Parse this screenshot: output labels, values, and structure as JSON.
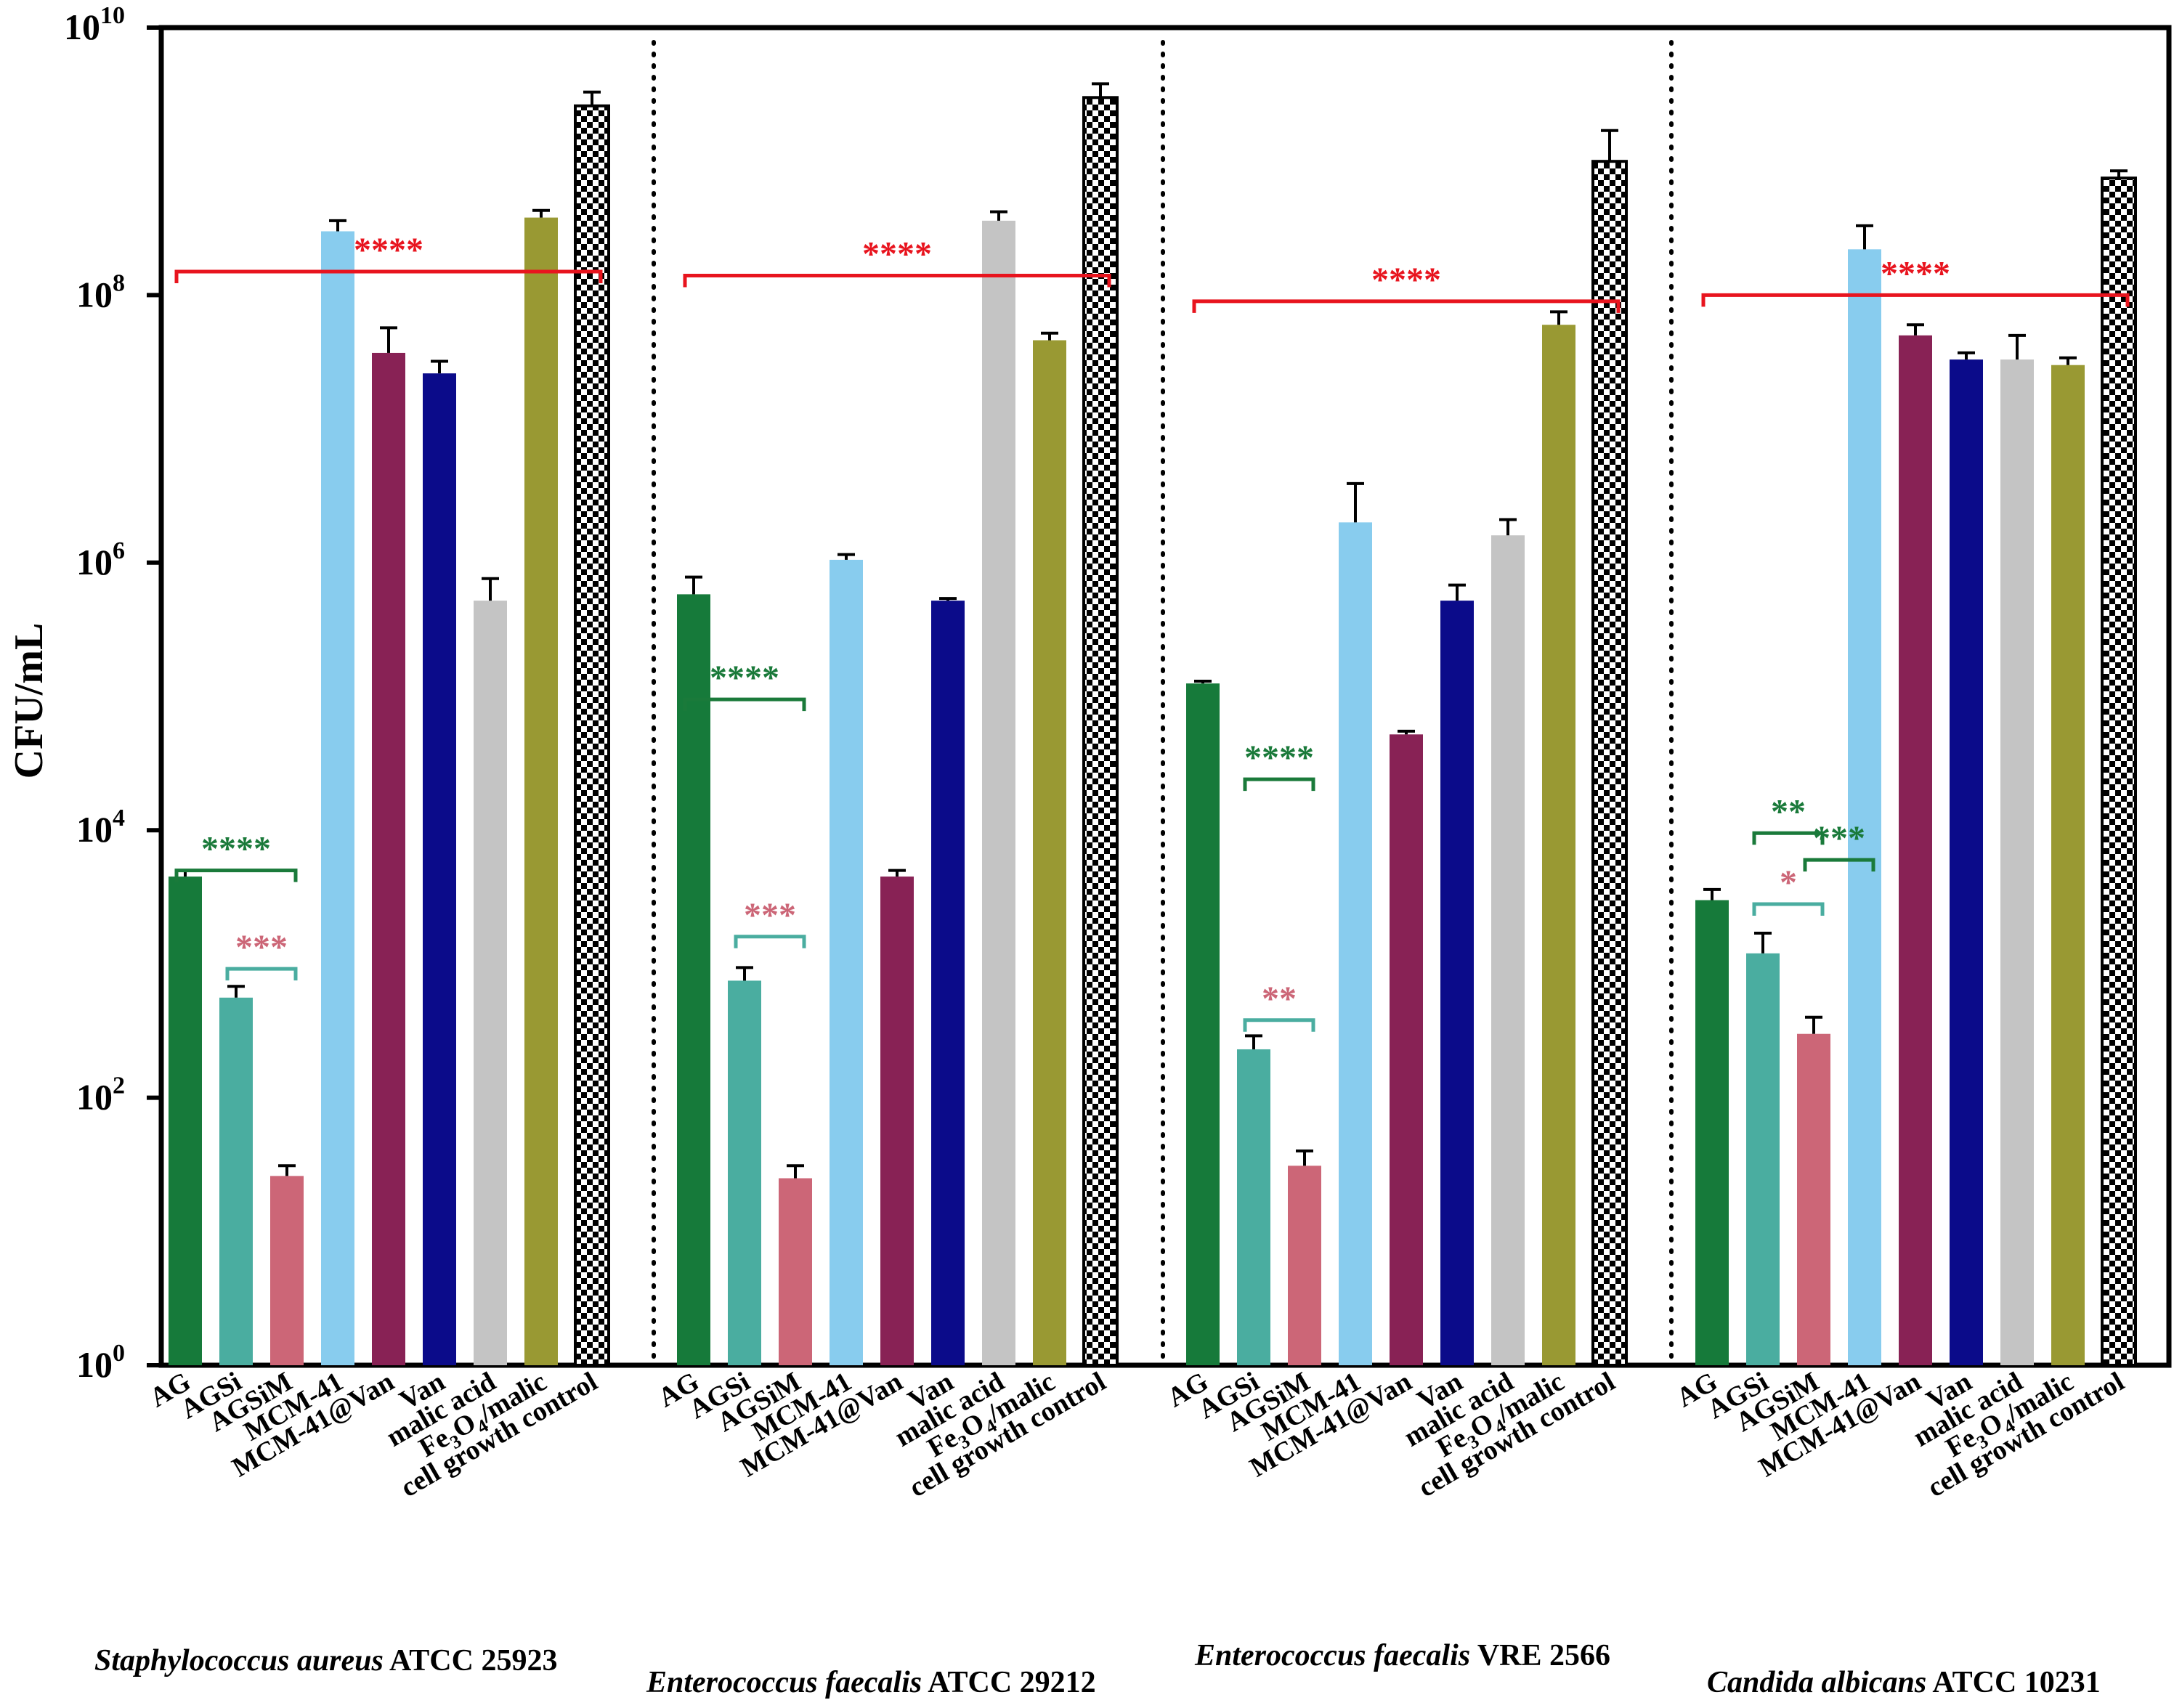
{
  "chart_data": {
    "type": "bar",
    "scale": "log10",
    "ylabel": "CFU/mL",
    "ylim": [
      1,
      10000000000
    ],
    "y_ticks": [
      {
        "value": 1,
        "base": "10",
        "exp": "0"
      },
      {
        "value": 100,
        "base": "10",
        "exp": "2"
      },
      {
        "value": 10000,
        "base": "10",
        "exp": "4"
      },
      {
        "value": 1000000,
        "base": "10",
        "exp": "6"
      },
      {
        "value": 100000000,
        "base": "10",
        "exp": "8"
      },
      {
        "value": 10000000000,
        "base": "10",
        "exp": "10"
      }
    ],
    "categories": [
      {
        "label": "AG"
      },
      {
        "label": "AGSi"
      },
      {
        "label": "AGSiM"
      },
      {
        "label": "MCM-41"
      },
      {
        "label": "MCM-41@Van"
      },
      {
        "label": "Van"
      },
      {
        "label": "malic acid"
      },
      {
        "label_parts": [
          "Fe",
          "3",
          "O",
          "4",
          "/malic"
        ]
      },
      {
        "label": "cell growth control"
      }
    ],
    "bar_colors": [
      "#167a3a",
      "#4aada0",
      "#cc6677",
      "#88ccee",
      "#882255",
      "#0b0b8a",
      "#c4c4c4",
      "#999933",
      "checker"
    ],
    "groups": [
      {
        "name_italic": "Staphylococcus aureus",
        "name_rest": " ATCC 25923",
        "values": [
          4500,
          560,
          26,
          300000000,
          37000000,
          26000000,
          520000,
          380000000,
          2600000000
        ],
        "errors": [
          5000,
          680,
          31,
          360000000,
          57000000,
          32000000,
          760000,
          430000000,
          3300000000
        ],
        "annotations": [
          {
            "from": 0,
            "to": 8,
            "value": 150000000,
            "text": "****",
            "color": "#e8141e"
          },
          {
            "from": 0,
            "to": 2,
            "value": 5000,
            "text": "****",
            "color": "#1a7a3a"
          },
          {
            "from": 1,
            "to": 2,
            "value": 920,
            "text": "***",
            "color": "#cc6677",
            "bracket_color": "#4aada0"
          }
        ]
      },
      {
        "name_italic": "Enterococcus faecalis",
        "name_rest": " ATCC 29212",
        "values": [
          580000,
          750,
          25,
          1050000,
          4500,
          520000,
          360000000,
          46000000,
          3000000000
        ],
        "errors": [
          780000,
          940,
          31,
          1150000,
          5000,
          540000,
          420000000,
          52000000,
          3800000000
        ],
        "annotations": [
          {
            "from": 0,
            "to": 8,
            "value": 140000000,
            "text": "****",
            "color": "#e8141e"
          },
          {
            "from": 0,
            "to": 2,
            "value": 95000,
            "text": "****",
            "color": "#1a7a3a"
          },
          {
            "from": 1,
            "to": 2,
            "value": 1600,
            "text": "***",
            "color": "#cc6677",
            "bracket_color": "#4aada0"
          }
        ]
      },
      {
        "name_italic": "Enterococcus faecalis",
        "name_rest": " VRE 2566",
        "values": [
          125000,
          230,
          31,
          2000000,
          52000,
          520000,
          1600000,
          60000000,
          1000000000
        ],
        "errors": [
          130000,
          290,
          40,
          3900000,
          55000,
          680000,
          2100000,
          75000000,
          1700000000
        ],
        "annotations": [
          {
            "from": 0,
            "to": 8,
            "value": 90000000,
            "text": "****",
            "color": "#e8141e"
          },
          {
            "from": 1,
            "to": 2,
            "value": 24000,
            "text": "****",
            "color": "#1a7a3a"
          },
          {
            "from": 1,
            "to": 2,
            "value": 380,
            "text": "**",
            "color": "#cc6677",
            "bracket_color": "#4aada0"
          }
        ]
      },
      {
        "name_italic": "Candida albicans",
        "name_rest": " ATCC 10231",
        "values": [
          3000,
          1200,
          300,
          220000000,
          50000000,
          33000000,
          33000000,
          30000000,
          750000000
        ],
        "errors": [
          3600,
          1700,
          400,
          330000000,
          60000000,
          37000000,
          50000000,
          34000000,
          850000000
        ],
        "annotations": [
          {
            "from": 0,
            "to": 8,
            "value": 100000000,
            "text": "****",
            "color": "#e8141e"
          },
          {
            "from": 1,
            "to": 2,
            "value": 9500,
            "text": "**",
            "color": "#1a7a3a"
          },
          {
            "from": 2,
            "to": 3,
            "value": 6000,
            "text": "***",
            "color": "#1a7a3a"
          },
          {
            "from": 1,
            "to": 2,
            "value": 2800,
            "text": "*",
            "color": "#cc6677",
            "bracket_color": "#4aada0"
          }
        ]
      }
    ]
  }
}
